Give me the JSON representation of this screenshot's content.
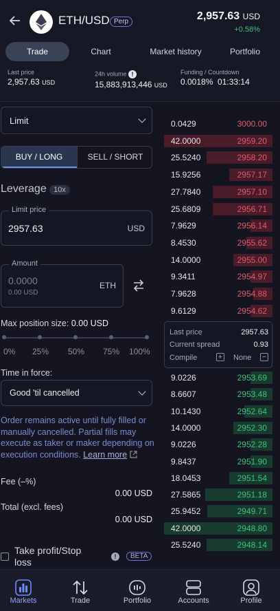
{
  "header": {
    "pair": "ETH/USD",
    "badge": "Perp",
    "price": "2,957.63",
    "price_unit": "USD",
    "change": "+0.58%",
    "tabs": [
      "Trade",
      "Chart",
      "Market history",
      "Portfolio"
    ],
    "stats": {
      "last_price_label": "Last price",
      "last_price_value": "2,957.63",
      "last_price_unit": "USD",
      "volume_label": "24h volume",
      "volume_value": "15,883,913,446",
      "volume_unit": "USD",
      "funding_label": "Funding / Countdown",
      "funding_rate": "0.0018%",
      "countdown": "01:33:14"
    }
  },
  "order_form": {
    "order_type": "Limit",
    "buy_label": "BUY / LONG",
    "sell_label": "SELL / SHORT",
    "leverage_label": "Leverage",
    "leverage_value": "10x",
    "limit_price_label": "Limit price",
    "limit_price_value": "2957.63",
    "limit_price_unit": "USD",
    "amount_label": "Amount",
    "amount_value": "0.0000",
    "amount_usd": "0.00 USD",
    "amount_unit": "ETH",
    "max_position_label": "Max position size:",
    "max_position_value": "0.00 USD",
    "slider_ticks": [
      "0%",
      "25%",
      "50%",
      "75%",
      "100%"
    ],
    "slider_value_percent": 0,
    "time_in_force_label": "Time in force:",
    "time_in_force_value": "Good 'til cancelled",
    "note": "Order remains active until fully filled or manually cancelled. Partial fills may execute as taker or maker depending on execution conditions.",
    "learn_more": "Learn more",
    "fee_label": "Fee (–%)",
    "fee_value": "0.00 USD",
    "total_label": "Total (excl. fees)",
    "total_value": "0.00 USD",
    "tpsl_label": "Take profit/Stop loss",
    "beta_label": "BETA"
  },
  "order_book": {
    "asks": [
      {
        "size": "0.0429",
        "price": "3000.00",
        "depth": 0.0
      },
      {
        "size": "42.0000",
        "price": "2959.20",
        "depth": 1.0
      },
      {
        "size": "25.5240",
        "price": "2958.20",
        "depth": 0.61
      },
      {
        "size": "15.9256",
        "price": "2957.17",
        "depth": 0.4
      },
      {
        "size": "27.7840",
        "price": "2957.10",
        "depth": 0.55
      },
      {
        "size": "25.6809",
        "price": "2956.71",
        "depth": 0.55
      },
      {
        "size": "7.9629",
        "price": "2956.14",
        "depth": 0.2
      },
      {
        "size": "8.4530",
        "price": "2955.62",
        "depth": 0.24
      },
      {
        "size": "14.0000",
        "price": "2955.00",
        "depth": 0.36
      },
      {
        "size": "9.3411",
        "price": "2954.97",
        "depth": 0.2
      },
      {
        "size": "7.9628",
        "price": "2954.88",
        "depth": 0.18
      },
      {
        "size": "9.6129",
        "price": "2954.62",
        "depth": 0.2
      }
    ],
    "spread": {
      "last_price_label": "Last price",
      "last_price_value": "2957.63",
      "spread_label": "Current spread",
      "spread_value": "0.93",
      "compile_label": "Compile",
      "compile_value": "None"
    },
    "bids": [
      {
        "size": "9.0226",
        "price": "2953.69",
        "depth": 0.2
      },
      {
        "size": "8.6607",
        "price": "2953.48",
        "depth": 0.2
      },
      {
        "size": "10.1430",
        "price": "2952.64",
        "depth": 0.26
      },
      {
        "size": "14.0000",
        "price": "2952.30",
        "depth": 0.36
      },
      {
        "size": "9.0226",
        "price": "2952.28",
        "depth": 0.2
      },
      {
        "size": "9.8437",
        "price": "2951.90",
        "depth": 0.2
      },
      {
        "size": "18.0453",
        "price": "2951.54",
        "depth": 0.4
      },
      {
        "size": "27.5865",
        "price": "2951.18",
        "depth": 0.62
      },
      {
        "size": "25.9452",
        "price": "2949.71",
        "depth": 0.6
      },
      {
        "size": "42.0000",
        "price": "2948.80",
        "depth": 1.0
      },
      {
        "size": "25.5240",
        "price": "2948.14",
        "depth": 0.61
      }
    ]
  },
  "bottom_nav": {
    "items": [
      {
        "label": "Markets",
        "icon": "bar-chart-icon",
        "active": true
      },
      {
        "label": "Trade",
        "icon": "swap-arrows-icon",
        "active": false
      },
      {
        "label": "Portfolio",
        "icon": "portfolio-icon",
        "active": false
      },
      {
        "label": "Accounts",
        "icon": "accounts-icon",
        "active": false
      },
      {
        "label": "Profile",
        "icon": "profile-icon",
        "active": false
      }
    ]
  },
  "colors": {
    "background": "#141521",
    "ask": "#e3596d",
    "bid": "#3fc27b",
    "accent": "#6e8df0"
  }
}
